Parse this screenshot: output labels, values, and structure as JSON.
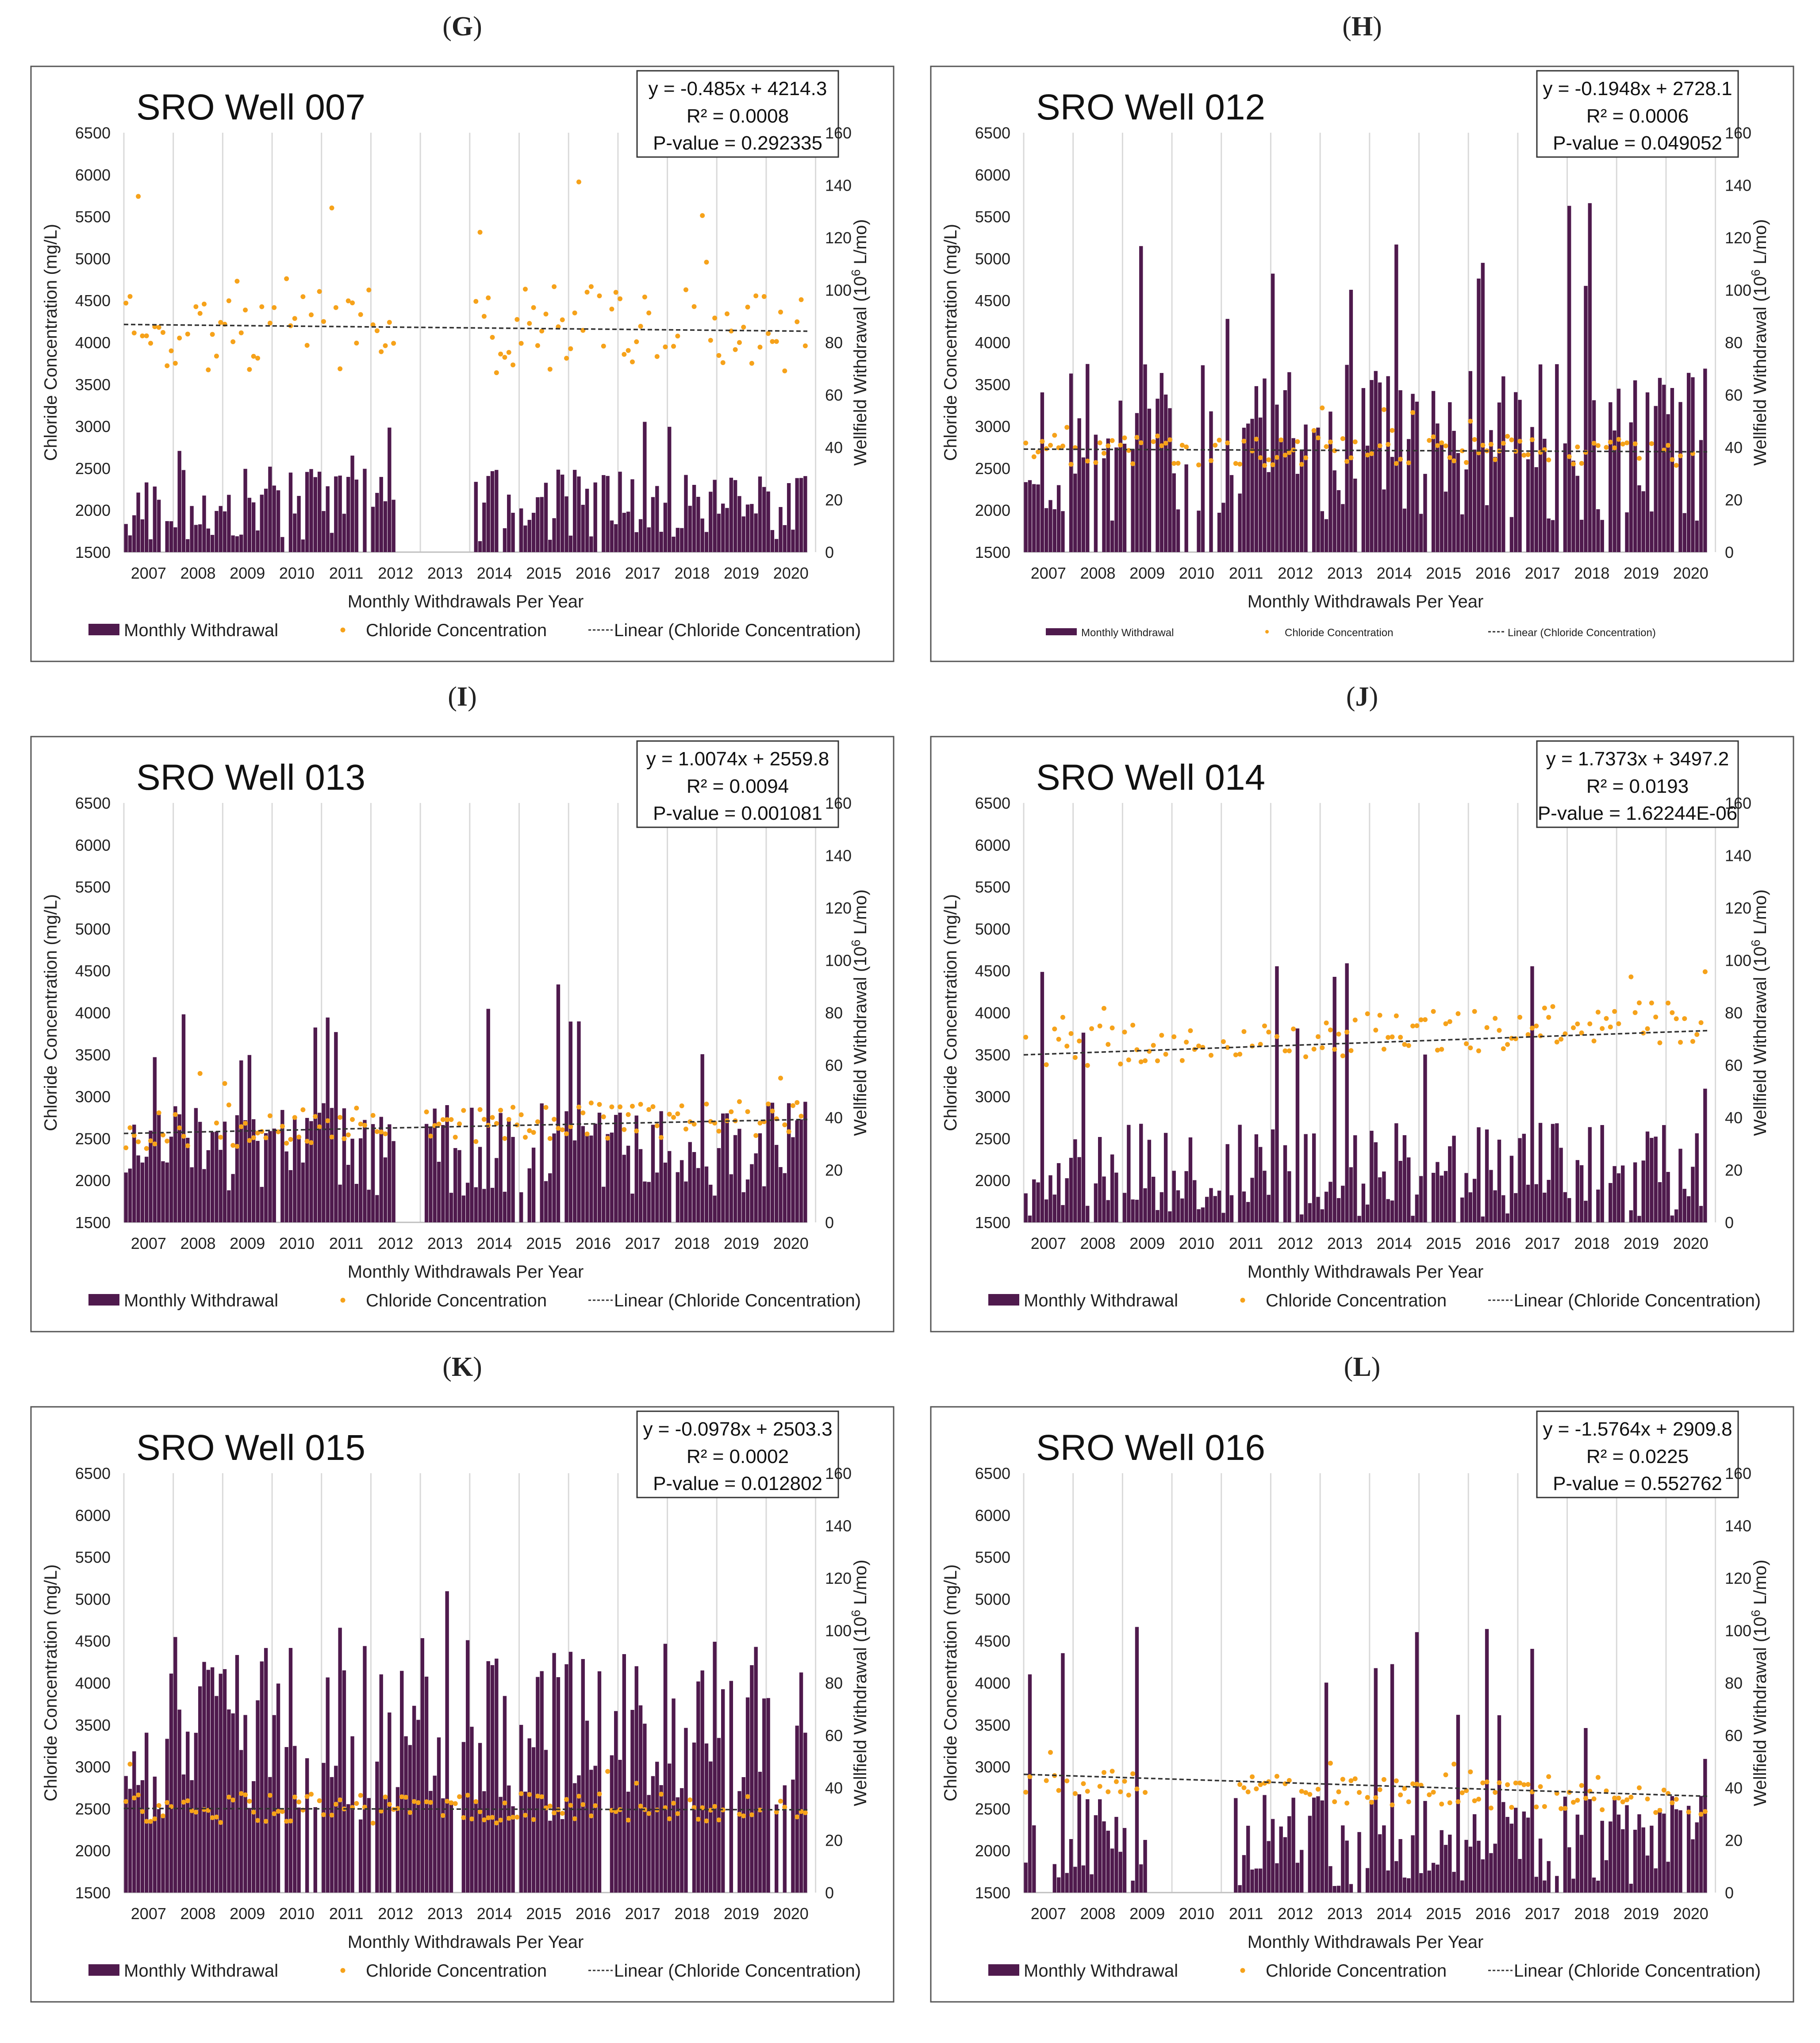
{
  "colors": {
    "withdrawal_bar": "#4f1a4d",
    "chloride_point": "#f6a21a",
    "trend_line": "#333333",
    "grid": "#d9d9d9",
    "frame": "#555555",
    "text": "#222222"
  },
  "shared": {
    "ylabel_left": "Chloride Concentration (mg/L)",
    "ylabel_right": "Wellfield Withdrawal (10",
    "ylabel_right_sup": "6",
    "ylabel_right_end": " L/mo)",
    "xlabel": "Monthly Withdrawals Per Year",
    "legend_withdrawal": "Monthly Withdrawal",
    "legend_chloride": "Chloride Concentration",
    "legend_trend": "Linear (Chloride Concentration)",
    "years": [
      "2007",
      "2008",
      "2009",
      "2010",
      "2011",
      "2012",
      "2013",
      "2014",
      "2015",
      "2016",
      "2017",
      "2018",
      "2019",
      "2020"
    ],
    "left_ticks": [
      1500,
      2000,
      2500,
      3000,
      3500,
      4000,
      4500,
      5000,
      5500,
      6000,
      6500
    ],
    "right_ticks": [
      0,
      20,
      40,
      60,
      80,
      100,
      120,
      140,
      160
    ],
    "ylim_left": [
      1500,
      6500
    ],
    "ylim_right": [
      0,
      160
    ]
  },
  "chart_data": [
    {
      "type": "bar+scatter",
      "panel": "G",
      "title": "SRO Well 007",
      "equation": "y = -0.485x + 4214.3",
      "r2": "R² = 0.0008",
      "pvalue": "P-value = 0.292335",
      "trend": {
        "slope": -0.485,
        "intercept": 4214.3
      },
      "chloride_level": 4250,
      "chloride_spread": 550,
      "withdrawal_level": 18,
      "withdrawal_spread": 14,
      "peak": 58,
      "gaps": [
        [
          66,
          84
        ]
      ],
      "seed": 11
    },
    {
      "type": "bar+scatter",
      "panel": "H",
      "title": "SRO Well 012",
      "equation": "y = -0.1948x + 2728.1",
      "r2": "R² = 0.0006",
      "pvalue": "P-value = 0.049052",
      "trend": {
        "slope": -0.1948,
        "intercept": 2728.1
      },
      "chloride_level": 2720,
      "chloride_spread": 180,
      "withdrawal_level": 42,
      "withdrawal_spread": 30,
      "peak": 140,
      "gaps": [],
      "seed": 23
    },
    {
      "type": "bar+scatter",
      "panel": "I",
      "title": "SRO Well 013",
      "equation": "y = 1.0074x + 2559.8",
      "r2": "R² = 0.0094",
      "pvalue": "P-value = 0.001081",
      "trend": {
        "slope": 1.0074,
        "intercept": 2559.8
      },
      "chloride_level": 2620,
      "chloride_spread": 220,
      "withdrawal_level": 28,
      "withdrawal_spread": 18,
      "peak": 92,
      "gaps": [
        [
          66,
          72
        ]
      ],
      "seed": 37
    },
    {
      "type": "bar+scatter",
      "panel": "J",
      "title": "SRO Well 014",
      "equation": "y = 1.7373x + 3497.2",
      "r2": "R² = 0.0193",
      "pvalue": "P-value = 1.62244E-06",
      "trend": {
        "slope": 1.7373,
        "intercept": 3497.2
      },
      "chloride_level": 3700,
      "chloride_spread": 260,
      "withdrawal_level": 20,
      "withdrawal_spread": 18,
      "peak": 102,
      "gaps": [],
      "seed": 41
    },
    {
      "type": "bar+scatter",
      "panel": "K",
      "title": "SRO Well 015",
      "equation": "y = -0.0978x + 2503.3",
      "r2": "R² = 0.0002",
      "pvalue": "P-value = 0.012802",
      "trend": {
        "slope": -0.0978,
        "intercept": 2503.3
      },
      "chloride_level": 2520,
      "chloride_spread": 180,
      "withdrawal_level": 62,
      "withdrawal_spread": 36,
      "peak": 122,
      "gaps": [],
      "seed": 53
    },
    {
      "type": "bar+scatter",
      "panel": "L",
      "title": "SRO Well 016",
      "equation": "y = -1.5764x + 2909.8",
      "r2": "R² = 0.0225",
      "pvalue": "P-value = 0.552762",
      "trend": {
        "slope": -1.5764,
        "intercept": 2909.8
      },
      "chloride_level": 2780,
      "chloride_spread": 160,
      "withdrawal_level": 20,
      "withdrawal_spread": 18,
      "peak": 102,
      "gaps": [
        [
          30,
          50
        ]
      ],
      "seed": 67
    }
  ]
}
